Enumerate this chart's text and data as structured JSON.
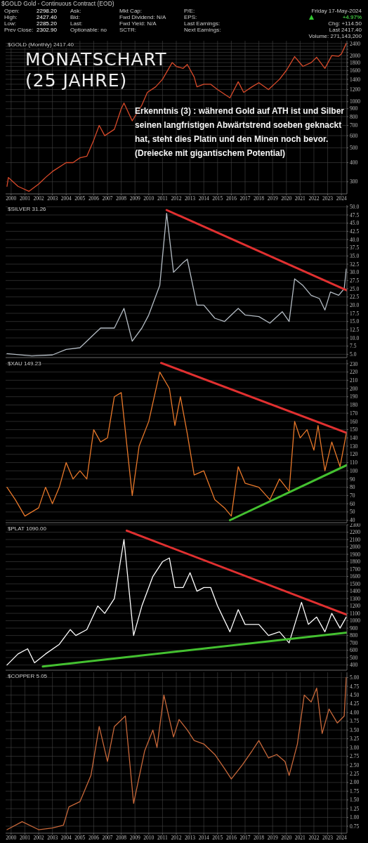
{
  "chart_data": [
    {
      "type": "line",
      "title": "$GOLD Gold - Continuous Contract (EOD)",
      "subtitle": "$GOLD (Monthly) 2417.40",
      "log": true,
      "grid": true,
      "annotations": [
        "MONATSCHART",
        "(25 JAHRE)",
        "Erkenntnis (3) : während Gold auf ATH ist und Silber seinen langfristigen Abwärtstrend soeben geknackt hat, steht dies Platin und den Minen noch bevor.",
        "(Dreiecke mit gigantischem Potential)",
        "Open:",
        "High:",
        "Low:",
        "Prev Close:",
        "2298.20",
        "2427.40",
        "2285.20",
        "2302.90",
        "Ask:",
        "Bid:",
        "Last:",
        "Optionable:  no",
        "Mkt Cap:",
        "Fwd Dividend: N/A",
        "Fwd Yield: N/A",
        "SCTR:",
        "P/E:",
        "EPS:",
        "Last Earnings:",
        "Next Earnings:",
        "Friday  17-May-2024",
        "+4.97%",
        "Chg: +114.50",
        "Last 2417.40",
        "Volume: 271,143,200"
      ],
      "xlim": [
        1999.6,
        2024.4
      ],
      "xticks": [
        2000,
        2001,
        2002,
        2003,
        2004,
        2005,
        2006,
        2007,
        2008,
        2009,
        2010,
        2011,
        2012,
        2013,
        2014,
        2015,
        2016,
        2017,
        2018,
        2019,
        2020,
        2021,
        2022,
        2023,
        2024
      ],
      "ylim": [
        250,
        2500
      ],
      "yticks": [
        300,
        400,
        500,
        600,
        700,
        800,
        900,
        1000,
        {
          "value": 1100,
          "label": null
        },
        1200,
        {
          "value": 1300,
          "label": null
        },
        1400,
        {
          "value": 1500,
          "label": null
        },
        1600,
        {
          "value": 1700,
          "label": null
        },
        1800,
        {
          "value": 1900,
          "label": null
        },
        2000,
        {
          "value": 2100,
          "label": null
        },
        {
          "value": 2200,
          "label": null
        },
        {
          "value": 2300,
          "label": null
        },
        2400
      ],
      "series": [
        {
          "color": "#d94a2a",
          "x": [
            1999.7,
            1999.8,
            2000.5,
            2001.3,
            2002,
            2002.5,
            2003,
            2004,
            2004.5,
            2005,
            2005.5,
            2006,
            2006.4,
            2006.8,
            2007.5,
            2008,
            2008.2,
            2008.8,
            2009.5,
            2009.9,
            2010.5,
            2011,
            2011.7,
            2012,
            2012.5,
            2012.8,
            2013.3,
            2013.5,
            2014,
            2014.5,
            2015,
            2015.9,
            2016.5,
            2016.9,
            2017.5,
            2018,
            2018.7,
            2019.5,
            2020,
            2020.6,
            2021.2,
            2021.8,
            2022.2,
            2022.8,
            2023.3,
            2023.8,
            2024,
            2024.35
          ],
          "values": [
            280,
            320,
            280,
            260,
            290,
            320,
            350,
            400,
            400,
            430,
            440,
            560,
            700,
            600,
            660,
            900,
            980,
            750,
            950,
            1150,
            1250,
            1400,
            1800,
            1700,
            1650,
            1750,
            1450,
            1250,
            1300,
            1300,
            1200,
            1060,
            1350,
            1150,
            1250,
            1330,
            1200,
            1400,
            1600,
            1970,
            1700,
            1800,
            1950,
            1650,
            2000,
            1980,
            2050,
            2400
          ]
        }
      ]
    },
    {
      "type": "line",
      "title": "$SILVER 31.26",
      "grid": true,
      "tick_labels": "y",
      "xlim": [
        1999.6,
        2024.4
      ],
      "xticks": [
        2000,
        2001,
        2002,
        2003,
        2004,
        2005,
        2006,
        2007,
        2008,
        2009,
        2010,
        2011,
        2012,
        2013,
        2014,
        2015,
        2016,
        2017,
        2018,
        2019,
        2020,
        2021,
        2022,
        2023,
        2024
      ],
      "ylim": [
        4,
        50.5
      ],
      "yticks": [
        {
          "value": 5,
          "label": "5.0"
        },
        7.5,
        {
          "value": 10,
          "label": "10.0"
        },
        12.5,
        {
          "value": 15,
          "label": "15.0"
        },
        17.5,
        {
          "value": 20,
          "label": "20.0"
        },
        22.5,
        {
          "value": 25,
          "label": "25.0"
        },
        27.5,
        {
          "value": 30,
          "label": "30.0"
        },
        32.5,
        {
          "value": 35,
          "label": "35.0"
        },
        37.5,
        {
          "value": 40,
          "label": "40.0"
        },
        42.5,
        {
          "value": 45,
          "label": "45.0"
        },
        47.5,
        {
          "value": 50,
          "label": "50.0"
        }
      ],
      "series": [
        {
          "color": "#b4bcc4",
          "x": [
            1999.7,
            2001.5,
            2003,
            2004,
            2005,
            2006,
            2006.5,
            2007.5,
            2008.2,
            2008.8,
            2009.5,
            2010,
            2010.8,
            2011.3,
            2011.8,
            2012.5,
            2012.8,
            2013.5,
            2014,
            2014.8,
            2015.5,
            2016.5,
            2017,
            2018,
            2018.8,
            2019.7,
            2020.2,
            2020.6,
            2021.2,
            2021.8,
            2022.4,
            2022.8,
            2023.2,
            2023.8,
            2024.2,
            2024.35
          ],
          "values": [
            5.2,
            4.5,
            4.8,
            6.5,
            7,
            11,
            13,
            13,
            19,
            9,
            13,
            17,
            26,
            48,
            30,
            33,
            34,
            20,
            20,
            16,
            15,
            19,
            17,
            16.5,
            14.5,
            18,
            15,
            28,
            26,
            23,
            22,
            18.5,
            24,
            23,
            25,
            31
          ]
        },
        {
          "color": "#e03030",
          "x": [
            2011.3,
            2024.4
          ],
          "values": [
            49,
            24.5
          ]
        }
      ]
    },
    {
      "type": "line",
      "title": "$XAU 149.23",
      "grid": true,
      "tick_labels": "y",
      "xlim": [
        1999.6,
        2024.4
      ],
      "xticks": [
        2000,
        2001,
        2002,
        2003,
        2004,
        2005,
        2006,
        2007,
        2008,
        2009,
        2010,
        2011,
        2012,
        2013,
        2014,
        2015,
        2016,
        2017,
        2018,
        2019,
        2020,
        2021,
        2022,
        2023,
        2024
      ],
      "ylim": [
        37,
        235
      ],
      "yticks": [
        40,
        50,
        60,
        70,
        80,
        90,
        100,
        110,
        120,
        130,
        140,
        150,
        160,
        170,
        180,
        190,
        200,
        210,
        220,
        230
      ],
      "series": [
        {
          "color": "#e8782a",
          "x": [
            1999.7,
            2000.3,
            2001,
            2002,
            2002.5,
            2003,
            2003.5,
            2004,
            2004.5,
            2005,
            2005.5,
            2006,
            2006.5,
            2007,
            2007.5,
            2008,
            2008.8,
            2009.3,
            2010,
            2010.8,
            2011.5,
            2011.9,
            2012.3,
            2012.8,
            2013.3,
            2014,
            2014.8,
            2015.5,
            2016,
            2016.5,
            2017,
            2018,
            2018.8,
            2019.5,
            2020.2,
            2020.6,
            2021,
            2021.5,
            2022,
            2022.3,
            2022.8,
            2023.3,
            2023.9,
            2024.35
          ],
          "values": [
            80,
            65,
            45,
            55,
            80,
            60,
            80,
            110,
            90,
            100,
            90,
            150,
            135,
            140,
            190,
            195,
            70,
            130,
            160,
            220,
            200,
            155,
            190,
            145,
            95,
            100,
            65,
            55,
            45,
            105,
            85,
            80,
            65,
            90,
            75,
            160,
            140,
            150,
            125,
            155,
            100,
            135,
            105,
            145
          ]
        },
        {
          "color": "#e03030",
          "x": [
            2010.9,
            2024.4
          ],
          "values": [
            231,
            146
          ]
        },
        {
          "color": "#44c030",
          "x": [
            2015.9,
            2024.4
          ],
          "values": [
            40,
            107
          ]
        }
      ]
    },
    {
      "type": "line",
      "title": "$PLAT 1090.00",
      "grid": true,
      "tick_labels": "y",
      "xlim": [
        1999.6,
        2024.4
      ],
      "xticks": [
        2000,
        2001,
        2002,
        2003,
        2004,
        2005,
        2006,
        2007,
        2008,
        2009,
        2010,
        2011,
        2012,
        2013,
        2014,
        2015,
        2016,
        2017,
        2018,
        2019,
        2020,
        2021,
        2022,
        2023,
        2024
      ],
      "ylim": [
        330,
        2300
      ],
      "yticks": [
        400,
        500,
        600,
        700,
        800,
        900,
        1000,
        1100,
        1200,
        1300,
        1400,
        1500,
        1600,
        1700,
        1800,
        1900,
        2000,
        2100,
        2200,
        2300
      ],
      "series": [
        {
          "color": "#ffffff",
          "x": [
            1999.7,
            2000.5,
            2001.2,
            2001.7,
            2002.5,
            2003.5,
            2004.3,
            2004.7,
            2005.5,
            2006.3,
            2006.8,
            2007.5,
            2008.2,
            2008.9,
            2009.5,
            2010.3,
            2011,
            2011.5,
            2011.9,
            2012.5,
            2013,
            2013.5,
            2014,
            2014.5,
            2015,
            2015.9,
            2016.5,
            2017,
            2018,
            2018.7,
            2019.5,
            2020.2,
            2021.1,
            2021.6,
            2022.2,
            2022.8,
            2023.3,
            2023.9,
            2024.35
          ],
          "values": [
            400,
            550,
            620,
            430,
            550,
            680,
            880,
            800,
            880,
            1200,
            1100,
            1300,
            2100,
            800,
            1200,
            1600,
            1800,
            1850,
            1450,
            1450,
            1650,
            1400,
            1450,
            1450,
            1200,
            850,
            1150,
            950,
            950,
            800,
            850,
            700,
            1250,
            950,
            1050,
            850,
            1100,
            900,
            1050
          ]
        },
        {
          "color": "#e03030",
          "x": [
            2008.4,
            2024.4
          ],
          "values": [
            2220,
            1080
          ]
        },
        {
          "color": "#44c030",
          "x": [
            2002.3,
            2024.4
          ],
          "values": [
            380,
            840
          ]
        }
      ]
    },
    {
      "type": "line",
      "title": "$COPPER 5.05",
      "grid": true,
      "xlim": [
        1999.6,
        2024.4
      ],
      "xticks": [
        2000,
        2001,
        2002,
        2003,
        2004,
        2005,
        2006,
        2007,
        2008,
        2009,
        2010,
        2011,
        2012,
        2013,
        2014,
        2015,
        2016,
        2017,
        2018,
        2019,
        2020,
        2021,
        2022,
        2023,
        2024
      ],
      "ylim": [
        0.55,
        5.15
      ],
      "yticks": [
        0.75,
        {
          "value": 1,
          "label": "1.00"
        },
        1.25,
        {
          "value": 1.5,
          "label": "1.50"
        },
        1.75,
        {
          "value": 2,
          "label": "2.00"
        },
        2.25,
        {
          "value": 2.5,
          "label": "2.50"
        },
        2.75,
        {
          "value": 3,
          "label": "3.00"
        },
        3.25,
        {
          "value": 3.5,
          "label": "3.50"
        },
        3.75,
        {
          "value": 4,
          "label": "4.00"
        },
        4.25,
        {
          "value": 4.5,
          "label": "4.50"
        },
        4.75,
        {
          "value": 5,
          "label": "5.00"
        }
      ],
      "series": [
        {
          "color": "#c8683a",
          "x": [
            1999.7,
            2000.8,
            2002,
            2003,
            2003.8,
            2004.2,
            2005,
            2005.8,
            2006.4,
            2007,
            2007.5,
            2008.3,
            2008.9,
            2009.7,
            2010.3,
            2010.6,
            2011.1,
            2011.8,
            2012.2,
            2012.8,
            2013.3,
            2014,
            2014.8,
            2015.5,
            2016,
            2016.8,
            2017.5,
            2018,
            2018.7,
            2019.3,
            2019.9,
            2020.2,
            2020.8,
            2021.3,
            2021.8,
            2022.2,
            2022.6,
            2023.1,
            2023.7,
            2024.2,
            2024.35
          ],
          "values": [
            0.65,
            0.88,
            0.65,
            0.7,
            0.78,
            1.3,
            1.45,
            2.2,
            3.6,
            2.6,
            3.6,
            3.9,
            1.4,
            2.9,
            3.5,
            3,
            4.5,
            3.3,
            3.8,
            3.5,
            3.2,
            3.1,
            2.8,
            2.4,
            2.1,
            2.5,
            2.9,
            3.2,
            2.7,
            2.8,
            2.6,
            2.2,
            3.1,
            4.5,
            4.3,
            4.7,
            3.4,
            4.1,
            3.7,
            3.9,
            5
          ]
        }
      ]
    }
  ]
}
